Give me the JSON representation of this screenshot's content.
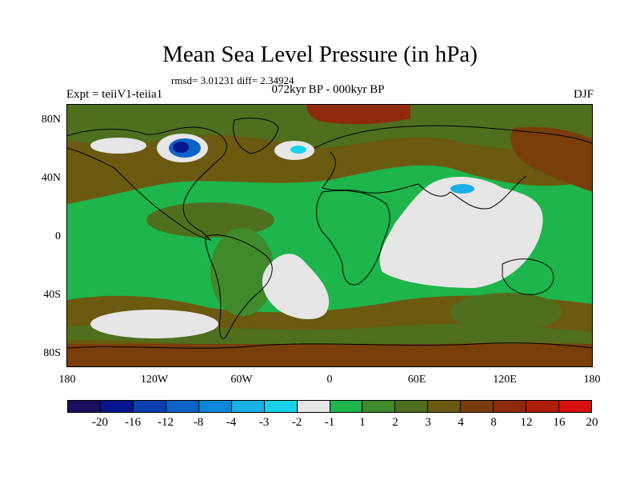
{
  "title": "Mean Sea Level Pressure (in hPa)",
  "stats": "rmsd= 3.01231 diff= 2.34924",
  "left_label": "Expt = teiiV1-teiia1",
  "center_label": "072kyr BP - 000kyr BP",
  "right_label": "DJF",
  "lat_ticks": [
    "80N",
    "40N",
    "0",
    "40S",
    "80S"
  ],
  "lon_ticks": [
    "180",
    "120W",
    "60W",
    "0",
    "60E",
    "120E",
    "180"
  ],
  "colorbar": {
    "colors": [
      "#1a0f5e",
      "#08148c",
      "#0a3fb0",
      "#0b63c8",
      "#0b88d9",
      "#1cb0e8",
      "#17d2e8",
      "#e6e6e6",
      "#1eb54c",
      "#3f8a2a",
      "#4f6f1e",
      "#6b5a10",
      "#7a3e0a",
      "#8e2a0a",
      "#b01d0a",
      "#d8100c"
    ],
    "labels": [
      "-20",
      "-16",
      "-12",
      "-8",
      "-4",
      "-3",
      "-2",
      "-1",
      "1",
      "2",
      "3",
      "4",
      "8",
      "12",
      "16",
      "20"
    ]
  }
}
